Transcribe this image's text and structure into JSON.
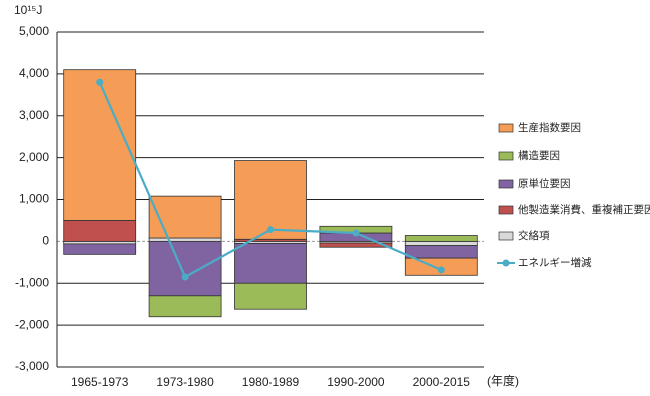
{
  "chart_data": {
    "type": "bar",
    "stacked": true,
    "unit": "10¹⁵J",
    "x_label": "(年度)",
    "categories": [
      "1965-1973",
      "1973-1980",
      "1980-1989",
      "1990-2000",
      "2000-2015"
    ],
    "series": [
      {
        "name": "生産指数要因",
        "color": "#f59d56",
        "values": [
          3600,
          1000,
          1880,
          0,
          -410
        ]
      },
      {
        "name": "構造要因",
        "color": "#9bbb59",
        "values": [
          0,
          -500,
          -620,
          160,
          140
        ]
      },
      {
        "name": "原単位要因",
        "color": "#8064a2",
        "values": [
          -250,
          -1300,
          -950,
          200,
          -300
        ]
      },
      {
        "name": "他製造業消費、重複補正要因",
        "color": "#c0504d",
        "values": [
          500,
          0,
          50,
          -100,
          0
        ]
      },
      {
        "name": "交絡項",
        "color": "#d9d9d9",
        "values": [
          -60,
          80,
          -50,
          -40,
          -100
        ]
      },
      {
        "name": "エネルギー増減",
        "type": "line",
        "color": "#4bacc6",
        "values": [
          3800,
          -850,
          280,
          200,
          -680
        ]
      }
    ],
    "ylim": [
      -3000,
      5000
    ],
    "yticks": [
      {
        "value": -3000,
        "label": "-3,000"
      },
      {
        "value": -2000,
        "label": "-2,000"
      },
      {
        "value": -1000,
        "label": "-1,000"
      },
      0,
      {
        "value": 1000,
        "label": "1,000"
      },
      {
        "value": 2000,
        "label": "2,000"
      },
      {
        "value": 3000,
        "label": "3,000"
      },
      {
        "value": 4000,
        "label": "4,000"
      },
      {
        "value": 5000,
        "label": "5,000"
      }
    ],
    "grid": true
  }
}
